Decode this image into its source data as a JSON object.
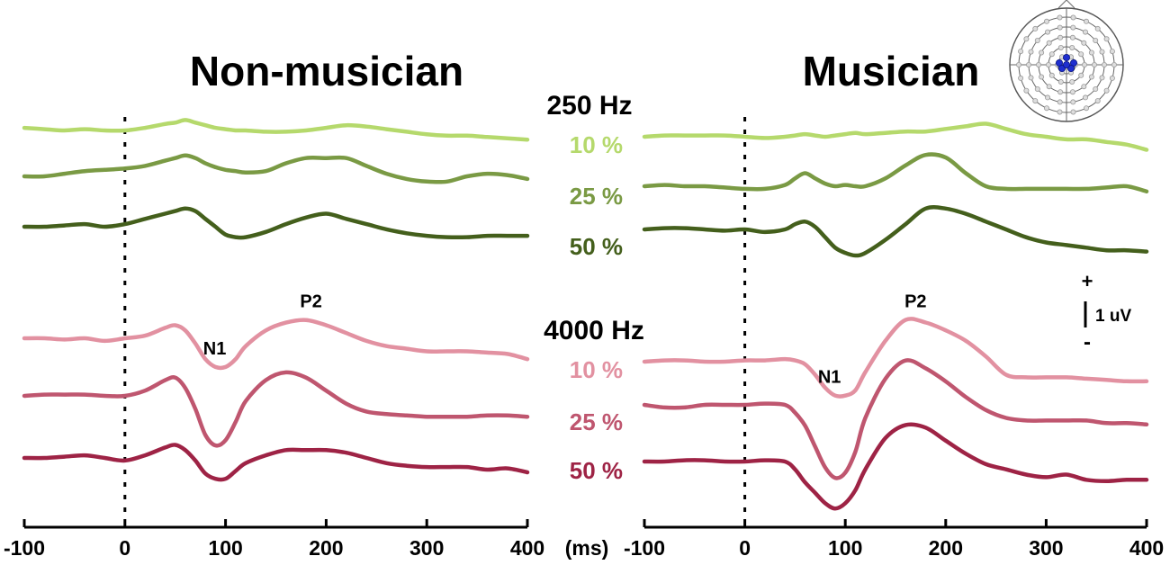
{
  "figure": {
    "panel_titles": [
      "Non-musician",
      "Musician"
    ],
    "frequency_labels": [
      "250 Hz",
      "4000 Hz"
    ],
    "unit_label": "(ms)",
    "scale_bar": {
      "plus": "+",
      "minus": "-",
      "label": "1 uV"
    },
    "colors": {
      "250Hz_10": "#b5d96c",
      "250Hz_25": "#7a9a44",
      "250Hz_50": "#445f1c",
      "4000Hz_10": "#e291a1",
      "4000Hz_25": "#bf566f",
      "4000Hz_50": "#9e2345"
    }
  },
  "chart_data": [
    {
      "type": "line",
      "title": "Non-musician",
      "xlim": [
        -100,
        400
      ],
      "xticks": [
        -100,
        0,
        100,
        200,
        300,
        400
      ],
      "peak_labels": [
        {
          "text": "N1",
          "x": 100,
          "series": "4000 Hz 10 %"
        },
        {
          "text": "P2",
          "x": 185,
          "series": "4000 Hz 10 %"
        }
      ],
      "x": [
        -100,
        -80,
        -60,
        -40,
        -20,
        0,
        20,
        40,
        50,
        60,
        70,
        80,
        90,
        100,
        110,
        120,
        140,
        160,
        180,
        200,
        220,
        240,
        260,
        280,
        300,
        320,
        340,
        360,
        380,
        400
      ],
      "series": [
        {
          "key": "250Hz_10",
          "label": "10 %",
          "values": [
            0.1,
            0.05,
            0.0,
            0.05,
            0.0,
            0.0,
            0.1,
            0.25,
            0.3,
            0.4,
            0.3,
            0.2,
            0.1,
            0.05,
            0.0,
            0.0,
            -0.05,
            -0.05,
            0.0,
            0.1,
            0.2,
            0.15,
            0.05,
            -0.05,
            -0.15,
            -0.2,
            -0.2,
            -0.25,
            -0.3,
            -0.35
          ]
        },
        {
          "key": "250Hz_25",
          "label": "25 %",
          "values": [
            0.0,
            0.0,
            0.1,
            0.2,
            0.25,
            0.3,
            0.4,
            0.6,
            0.7,
            0.8,
            0.7,
            0.5,
            0.35,
            0.25,
            0.2,
            0.15,
            0.2,
            0.5,
            0.7,
            0.7,
            0.7,
            0.4,
            0.1,
            -0.1,
            -0.2,
            -0.2,
            0.0,
            0.1,
            0.05,
            -0.1
          ]
        },
        {
          "key": "250Hz_50",
          "label": "50 %",
          "values": [
            0.0,
            0.0,
            0.05,
            0.1,
            0.0,
            0.1,
            0.3,
            0.5,
            0.6,
            0.7,
            0.6,
            0.3,
            0.0,
            -0.3,
            -0.4,
            -0.4,
            -0.2,
            0.1,
            0.35,
            0.5,
            0.3,
            0.1,
            -0.1,
            -0.25,
            -0.35,
            -0.4,
            -0.4,
            -0.35,
            -0.35,
            -0.35
          ]
        },
        {
          "key": "4000Hz_10",
          "label": "10 %",
          "values": [
            0.0,
            0.0,
            -0.05,
            0.0,
            -0.1,
            0.0,
            0.1,
            0.4,
            0.5,
            0.3,
            -0.2,
            -0.8,
            -1.1,
            -1.1,
            -0.8,
            -0.3,
            0.3,
            0.6,
            0.7,
            0.5,
            0.2,
            -0.1,
            -0.3,
            -0.4,
            -0.5,
            -0.5,
            -0.5,
            -0.55,
            -0.6,
            -0.8
          ]
        },
        {
          "key": "4000Hz_25",
          "label": "25 %",
          "values": [
            0.0,
            0.05,
            0.05,
            0.05,
            0.0,
            0.0,
            0.2,
            0.6,
            0.7,
            0.3,
            -0.5,
            -1.5,
            -1.9,
            -1.7,
            -1.0,
            -0.2,
            0.6,
            0.9,
            0.7,
            0.2,
            -0.3,
            -0.6,
            -0.7,
            -0.75,
            -0.8,
            -0.8,
            -0.8,
            -0.75,
            -0.75,
            -0.8
          ]
        },
        {
          "key": "4000Hz_50",
          "label": "50 %",
          "values": [
            0.0,
            0.0,
            0.05,
            0.1,
            0.0,
            -0.1,
            0.1,
            0.4,
            0.5,
            0.3,
            -0.1,
            -0.6,
            -0.8,
            -0.8,
            -0.5,
            -0.2,
            0.1,
            0.3,
            0.3,
            0.3,
            0.2,
            0.0,
            -0.2,
            -0.3,
            -0.35,
            -0.35,
            -0.35,
            -0.45,
            -0.4,
            -0.55
          ]
        }
      ]
    },
    {
      "type": "line",
      "title": "Musician",
      "xlim": [
        -100,
        400
      ],
      "xticks": [
        -100,
        0,
        100,
        200,
        300,
        400
      ],
      "peak_labels": [
        {
          "text": "N1",
          "x": 95,
          "series": "4000 Hz 10 %"
        },
        {
          "text": "P2",
          "x": 170,
          "series": "4000 Hz 10 %"
        }
      ],
      "x": [
        -100,
        -80,
        -60,
        -40,
        -20,
        0,
        20,
        40,
        50,
        60,
        70,
        80,
        90,
        100,
        110,
        120,
        140,
        160,
        180,
        200,
        220,
        240,
        260,
        280,
        300,
        320,
        340,
        360,
        380,
        400
      ],
      "series": [
        {
          "key": "250Hz_10",
          "label": "10 %",
          "values": [
            0.0,
            0.05,
            0.05,
            0.05,
            0.05,
            0.0,
            -0.05,
            0.0,
            0.05,
            0.1,
            0.05,
            0.0,
            0.05,
            0.1,
            0.15,
            0.1,
            0.15,
            0.2,
            0.2,
            0.3,
            0.4,
            0.5,
            0.3,
            0.1,
            0.0,
            -0.1,
            -0.1,
            -0.2,
            -0.3,
            -0.5
          ]
        },
        {
          "key": "250Hz_25",
          "label": "25 %",
          "values": [
            0.0,
            0.05,
            0.0,
            0.0,
            -0.05,
            -0.1,
            -0.1,
            0.05,
            0.3,
            0.5,
            0.3,
            0.1,
            0.0,
            0.05,
            0.0,
            0.0,
            0.3,
            0.8,
            1.2,
            1.1,
            0.5,
            0.0,
            -0.1,
            -0.1,
            -0.1,
            -0.1,
            -0.1,
            -0.05,
            0.0,
            -0.2
          ]
        },
        {
          "key": "250Hz_50",
          "label": "50 %",
          "values": [
            0.0,
            0.05,
            0.05,
            0.0,
            -0.05,
            0.0,
            -0.1,
            0.0,
            0.2,
            0.3,
            0.1,
            -0.3,
            -0.7,
            -0.9,
            -1.0,
            -0.9,
            -0.4,
            0.2,
            0.8,
            0.8,
            0.6,
            0.3,
            0.0,
            -0.3,
            -0.5,
            -0.6,
            -0.7,
            -0.8,
            -0.8,
            -0.85
          ]
        },
        {
          "key": "4000Hz_10",
          "label": "10 %",
          "values": [
            0.0,
            0.05,
            0.05,
            0.0,
            0.0,
            0.05,
            0.05,
            0.1,
            0.05,
            -0.1,
            -0.5,
            -1.0,
            -1.3,
            -1.3,
            -1.1,
            -0.4,
            0.8,
            1.6,
            1.5,
            1.2,
            0.8,
            0.2,
            -0.5,
            -0.6,
            -0.6,
            -0.6,
            -0.65,
            -0.7,
            -0.75,
            -0.75
          ]
        },
        {
          "key": "4000Hz_25",
          "label": "25 %",
          "values": [
            0.0,
            -0.1,
            -0.1,
            0.0,
            0.0,
            0.0,
            0.05,
            0.0,
            -0.3,
            -0.8,
            -1.6,
            -2.4,
            -2.8,
            -2.6,
            -1.8,
            -0.5,
            1.0,
            1.7,
            1.4,
            0.9,
            0.3,
            -0.2,
            -0.5,
            -0.6,
            -0.6,
            -0.6,
            -0.6,
            -0.7,
            -0.7,
            -0.75
          ]
        },
        {
          "key": "4000Hz_50",
          "label": "50 %",
          "values": [
            0.0,
            0.0,
            0.05,
            0.05,
            0.0,
            0.0,
            0.05,
            0.0,
            -0.3,
            -0.8,
            -1.2,
            -1.6,
            -1.8,
            -1.6,
            -1.1,
            -0.3,
            0.9,
            1.4,
            1.3,
            0.8,
            0.3,
            -0.1,
            -0.3,
            -0.5,
            -0.6,
            -0.5,
            -0.7,
            -0.75,
            -0.7,
            -0.7
          ]
        }
      ]
    }
  ]
}
